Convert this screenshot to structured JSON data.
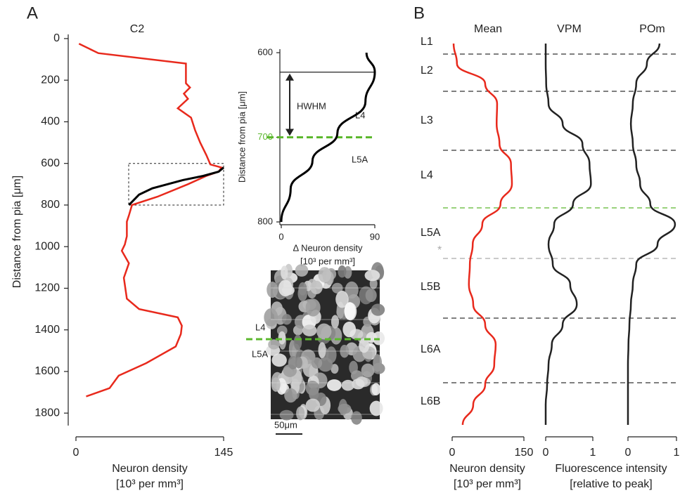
{
  "chart_data": [
    {
      "type": "line",
      "panel": "A",
      "title": "C2",
      "xlabel": [
        "Neuron density",
        "[10³ per mm³]"
      ],
      "ylabel": "Distance from pia [μm]",
      "xlim": [
        0,
        145
      ],
      "xticks": [
        0,
        145
      ],
      "ylim": [
        -20,
        1860
      ],
      "yticks": [
        0,
        200,
        400,
        600,
        800,
        1000,
        1200,
        1400,
        1600,
        1800
      ],
      "y_inverted": true,
      "series": [
        {
          "color": "#e8291c",
          "x": [
            3,
            22,
            108,
            108,
            112,
            106,
            110,
            100,
            113,
            117,
            122,
            128,
            132,
            143,
            140,
            128,
            110,
            80,
            55,
            52,
            50,
            50,
            48,
            45,
            52,
            47,
            50,
            62,
            100,
            104,
            103,
            98,
            69,
            42,
            33,
            10
          ],
          "values": [
            25,
            70,
            120,
            215,
            235,
            265,
            290,
            335,
            380,
            440,
            500,
            560,
            605,
            620,
            640,
            660,
            700,
            760,
            800,
            850,
            880,
            950,
            990,
            1020,
            1080,
            1150,
            1250,
            1300,
            1340,
            1380,
            1420,
            1480,
            1560,
            1620,
            1680,
            1720
          ]
        },
        {
          "color": "#000000",
          "x": [
            145,
            140,
            125,
            105,
            90,
            75,
            62,
            52
          ],
          "values": [
            620,
            640,
            660,
            680,
            700,
            720,
            750,
            800
          ]
        }
      ]
    },
    {
      "type": "line",
      "ylabel": "Distance from pia [μm]",
      "xlabel": [
        "Δ Neuron density",
        "[10³ per mm³]"
      ],
      "xlim": [
        0,
        90
      ],
      "xticks": [
        0,
        90
      ],
      "ylim": [
        600,
        800
      ],
      "yticks": [
        600,
        700,
        800
      ],
      "y_inverted": true,
      "lines": [
        {
          "value": 623,
          "color": "#222222",
          "dashed": false
        },
        {
          "value": 700,
          "color": "#5cb82e",
          "dashed": true
        }
      ],
      "annotations": [
        "HWHM",
        "L4",
        "L5A"
      ],
      "series": [
        {
          "color": "#000000",
          "x": [
            82,
            90,
            81,
            54,
            30,
            9,
            0
          ],
          "values": [
            600,
            623,
            658,
            695,
            728,
            761,
            800
          ]
        }
      ]
    },
    {
      "type": "image",
      "labels": [
        "L4",
        "L5A"
      ],
      "scale_bar": "50μm"
    },
    {
      "type": "line",
      "panel": "B",
      "title": "Mean",
      "xlabel": [
        "Neuron density",
        "[10³ per mm³]"
      ],
      "xlim": [
        0,
        150
      ],
      "xticks": [
        0,
        150
      ],
      "layers": [
        "L1",
        "L2",
        "L3",
        "L4",
        "L5A",
        "L5B",
        "L6A",
        "L6B"
      ],
      "marker": "*",
      "series": [
        {
          "color": "#e8291c",
          "values": [
            3,
            10,
            69,
            94,
            93,
            99,
            123,
            125,
            101,
            63,
            43,
            37,
            35,
            44,
            69,
            91,
            88,
            69,
            44,
            22
          ]
        }
      ]
    },
    {
      "type": "line",
      "title": "VPM",
      "xlabel": [
        "Fluorescence intensity",
        "[relative to peak]"
      ],
      "xlim": [
        0,
        1
      ],
      "xticks": [
        0,
        1
      ],
      "series": [
        {
          "color": "#222222",
          "values": [
            0,
            0,
            0.01,
            0.06,
            0.36,
            0.78,
            0.93,
            0.96,
            0.58,
            0.18,
            0.06,
            0.15,
            0.52,
            0.66,
            0.36,
            0.13,
            0.06,
            0.03,
            0,
            0
          ]
        }
      ]
    },
    {
      "type": "line",
      "title": "POm",
      "xlim": [
        0,
        1
      ],
      "xticks": [
        0,
        1
      ],
      "series": [
        {
          "color": "#222222",
          "values": [
            0.65,
            0.39,
            0.17,
            0.1,
            0.06,
            0.1,
            0.17,
            0.25,
            0.46,
            0.97,
            0.61,
            0.17,
            0.1,
            0.06,
            0.03,
            0.01,
            0,
            0,
            0,
            0
          ]
        }
      ]
    }
  ]
}
